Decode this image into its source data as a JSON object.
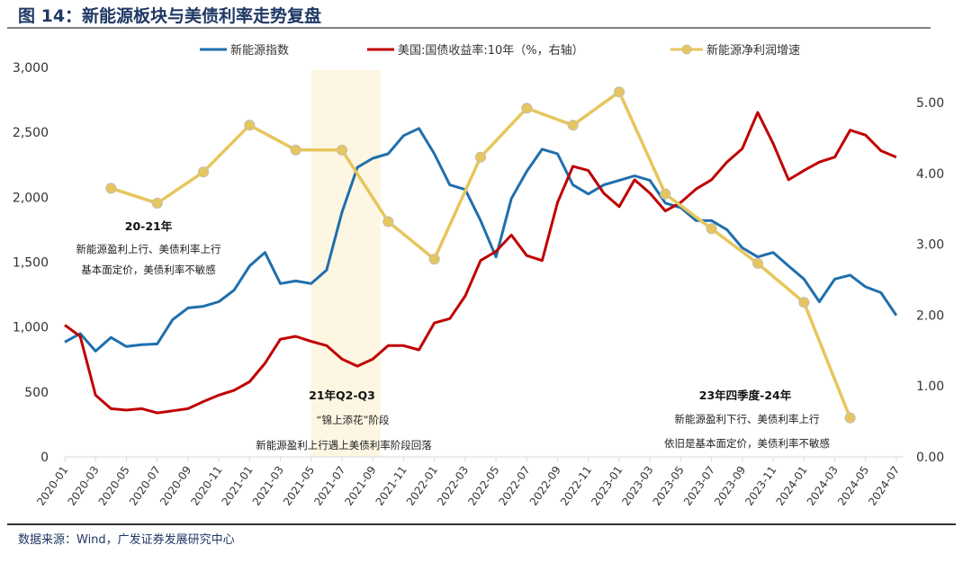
{
  "figure": {
    "title": "图 14：新能源板块与美债利率走势复盘",
    "source": "数据来源：Wind，广发证券发展研究中心",
    "title_color": "#1f3864"
  },
  "chart_data": {
    "type": "line",
    "title": "图 14：新能源板块与美债利率走势复盘",
    "left_axis": {
      "range": [
        0,
        3000
      ],
      "ticks": [
        "0",
        "500",
        "1,000",
        "1,500",
        "2,000",
        "2,500",
        "3,000"
      ],
      "tick_values": [
        0,
        500,
        1000,
        1500,
        2000,
        2500,
        3000
      ]
    },
    "right_axis": {
      "range": [
        0,
        5
      ],
      "ticks": [
        "0.00",
        "1.00",
        "2.00",
        "3.00",
        "4.00",
        "5.00"
      ],
      "tick_values": [
        0,
        1,
        2,
        3,
        4,
        5
      ]
    },
    "x_ticks": [
      "2020-01",
      "2020-03",
      "2020-05",
      "2020-07",
      "2020-09",
      "2020-11",
      "2021-01",
      "2021-03",
      "2021-05",
      "2021-07",
      "2021-09",
      "2021-11",
      "2022-01",
      "2022-03",
      "2022-05",
      "2022-07",
      "2022-09",
      "2022-11",
      "2023-01",
      "2023-03",
      "2023-05",
      "2023-07",
      "2023-09",
      "2023-11",
      "2024-01",
      "2024-03",
      "2024-05",
      "2024-07"
    ],
    "x_range": [
      "2020-01",
      "2024-07"
    ],
    "grid": false,
    "legend_placement": "top",
    "legend": [
      "新能源指数",
      "美国:国债收益率:10年（%，右轴）",
      "新能源净利润增速"
    ],
    "highlight_band": {
      "from": "2021-05-01",
      "to": "2021-09-16",
      "color": "#fdf6e3"
    },
    "series": [
      {
        "name": "新能源指数",
        "axis": "left",
        "color": "#1f6fad",
        "x": [
          "2020-01",
          "2020-02",
          "2020-03",
          "2020-04",
          "2020-05",
          "2020-06",
          "2020-07",
          "2020-08",
          "2020-09",
          "2020-10",
          "2020-11",
          "2020-12",
          "2021-01",
          "2021-02",
          "2021-03",
          "2021-04",
          "2021-05",
          "2021-06",
          "2021-07",
          "2021-08",
          "2021-09",
          "2021-10",
          "2021-11",
          "2021-12",
          "2022-01",
          "2022-02",
          "2022-03",
          "2022-04",
          "2022-05",
          "2022-06",
          "2022-07",
          "2022-08",
          "2022-09",
          "2022-10",
          "2022-11",
          "2022-12",
          "2023-01",
          "2023-02",
          "2023-03",
          "2023-04",
          "2023-05",
          "2023-06",
          "2023-07",
          "2023-08",
          "2023-09",
          "2023-10",
          "2023-11",
          "2023-12",
          "2024-01",
          "2024-02",
          "2024-03",
          "2024-04",
          "2024-05",
          "2024-06",
          "2024-07"
        ],
        "values": [
          885,
          950,
          815,
          920,
          850,
          865,
          870,
          1057,
          1147,
          1160,
          1195,
          1285,
          1470,
          1575,
          1335,
          1355,
          1335,
          1440,
          1885,
          2230,
          2300,
          2335,
          2475,
          2530,
          2335,
          2095,
          2060,
          1820,
          1540,
          1990,
          2200,
          2370,
          2335,
          2095,
          2025,
          2095,
          2130,
          2165,
          2130,
          1955,
          1920,
          1820,
          1820,
          1750,
          1610,
          1540,
          1575,
          1470,
          1370,
          1195,
          1370,
          1400,
          1310,
          1265,
          1090
        ]
      },
      {
        "name": "美国:国债收益率:10年（%，右轴）",
        "axis": "right",
        "color": "#c00000",
        "x": [
          "2020-01",
          "2020-02",
          "2020-03",
          "2020-04",
          "2020-05",
          "2020-06",
          "2020-07",
          "2020-08",
          "2020-09",
          "2020-10",
          "2020-11",
          "2020-12",
          "2021-01",
          "2021-02",
          "2021-03",
          "2021-04",
          "2021-05",
          "2021-06",
          "2021-07",
          "2021-08",
          "2021-09",
          "2021-10",
          "2021-11",
          "2021-12",
          "2022-01",
          "2022-02",
          "2022-03",
          "2022-04",
          "2022-05",
          "2022-06",
          "2022-07",
          "2022-08",
          "2022-09",
          "2022-10",
          "2022-11",
          "2022-12",
          "2023-01",
          "2023-02",
          "2023-03",
          "2023-04",
          "2023-05",
          "2023-06",
          "2023-07",
          "2023-08",
          "2023-09",
          "2023-10",
          "2023-11",
          "2023-12",
          "2024-01",
          "2024-02",
          "2024-03",
          "2024-04",
          "2024-05",
          "2024-06",
          "2024-07"
        ],
        "values": [
          1.86,
          1.7,
          0.87,
          0.68,
          0.66,
          0.68,
          0.62,
          0.65,
          0.68,
          0.78,
          0.87,
          0.94,
          1.06,
          1.32,
          1.66,
          1.7,
          1.63,
          1.57,
          1.38,
          1.28,
          1.38,
          1.57,
          1.57,
          1.51,
          1.89,
          1.95,
          2.27,
          2.77,
          2.9,
          3.13,
          2.84,
          2.77,
          3.59,
          4.1,
          4.04,
          3.72,
          3.53,
          3.91,
          3.72,
          3.47,
          3.59,
          3.78,
          3.91,
          4.16,
          4.35,
          4.86,
          4.42,
          3.91,
          4.04,
          4.16,
          4.23,
          4.61,
          4.54,
          4.32,
          4.23
        ]
      },
      {
        "name": "新能源净利润增速",
        "axis": "right",
        "color": "#e6c65c",
        "marker": "circle",
        "x": [
          "2020-04",
          "2020-07",
          "2020-10",
          "2021-01",
          "2021-04",
          "2021-07",
          "2021-10",
          "2022-01",
          "2022-04",
          "2022-07",
          "2022-10",
          "2023-01",
          "2023-04",
          "2023-07",
          "2023-10",
          "2024-01",
          "2024-04"
        ],
        "values": [
          3.79,
          3.58,
          4.02,
          4.68,
          4.33,
          4.33,
          3.32,
          2.79,
          4.23,
          4.92,
          4.68,
          5.15,
          3.71,
          3.22,
          2.73,
          2.18,
          0.55
        ]
      }
    ],
    "annotations": [
      {
        "lines": [
          "20-21年",
          "新能源盈利上行、美债利率上行",
          "基本面定价，美债利率不敏感"
        ]
      },
      {
        "lines": [
          "21年Q2-Q3",
          "“锦上添花”阶段",
          "新能源盈利上行遇上美债利率阶段回落"
        ]
      },
      {
        "lines": [
          "23年四季度-24年",
          "新能源盈利下行、美债利率上行",
          "依旧是基本面定价，美债利率不敏感"
        ]
      }
    ]
  }
}
